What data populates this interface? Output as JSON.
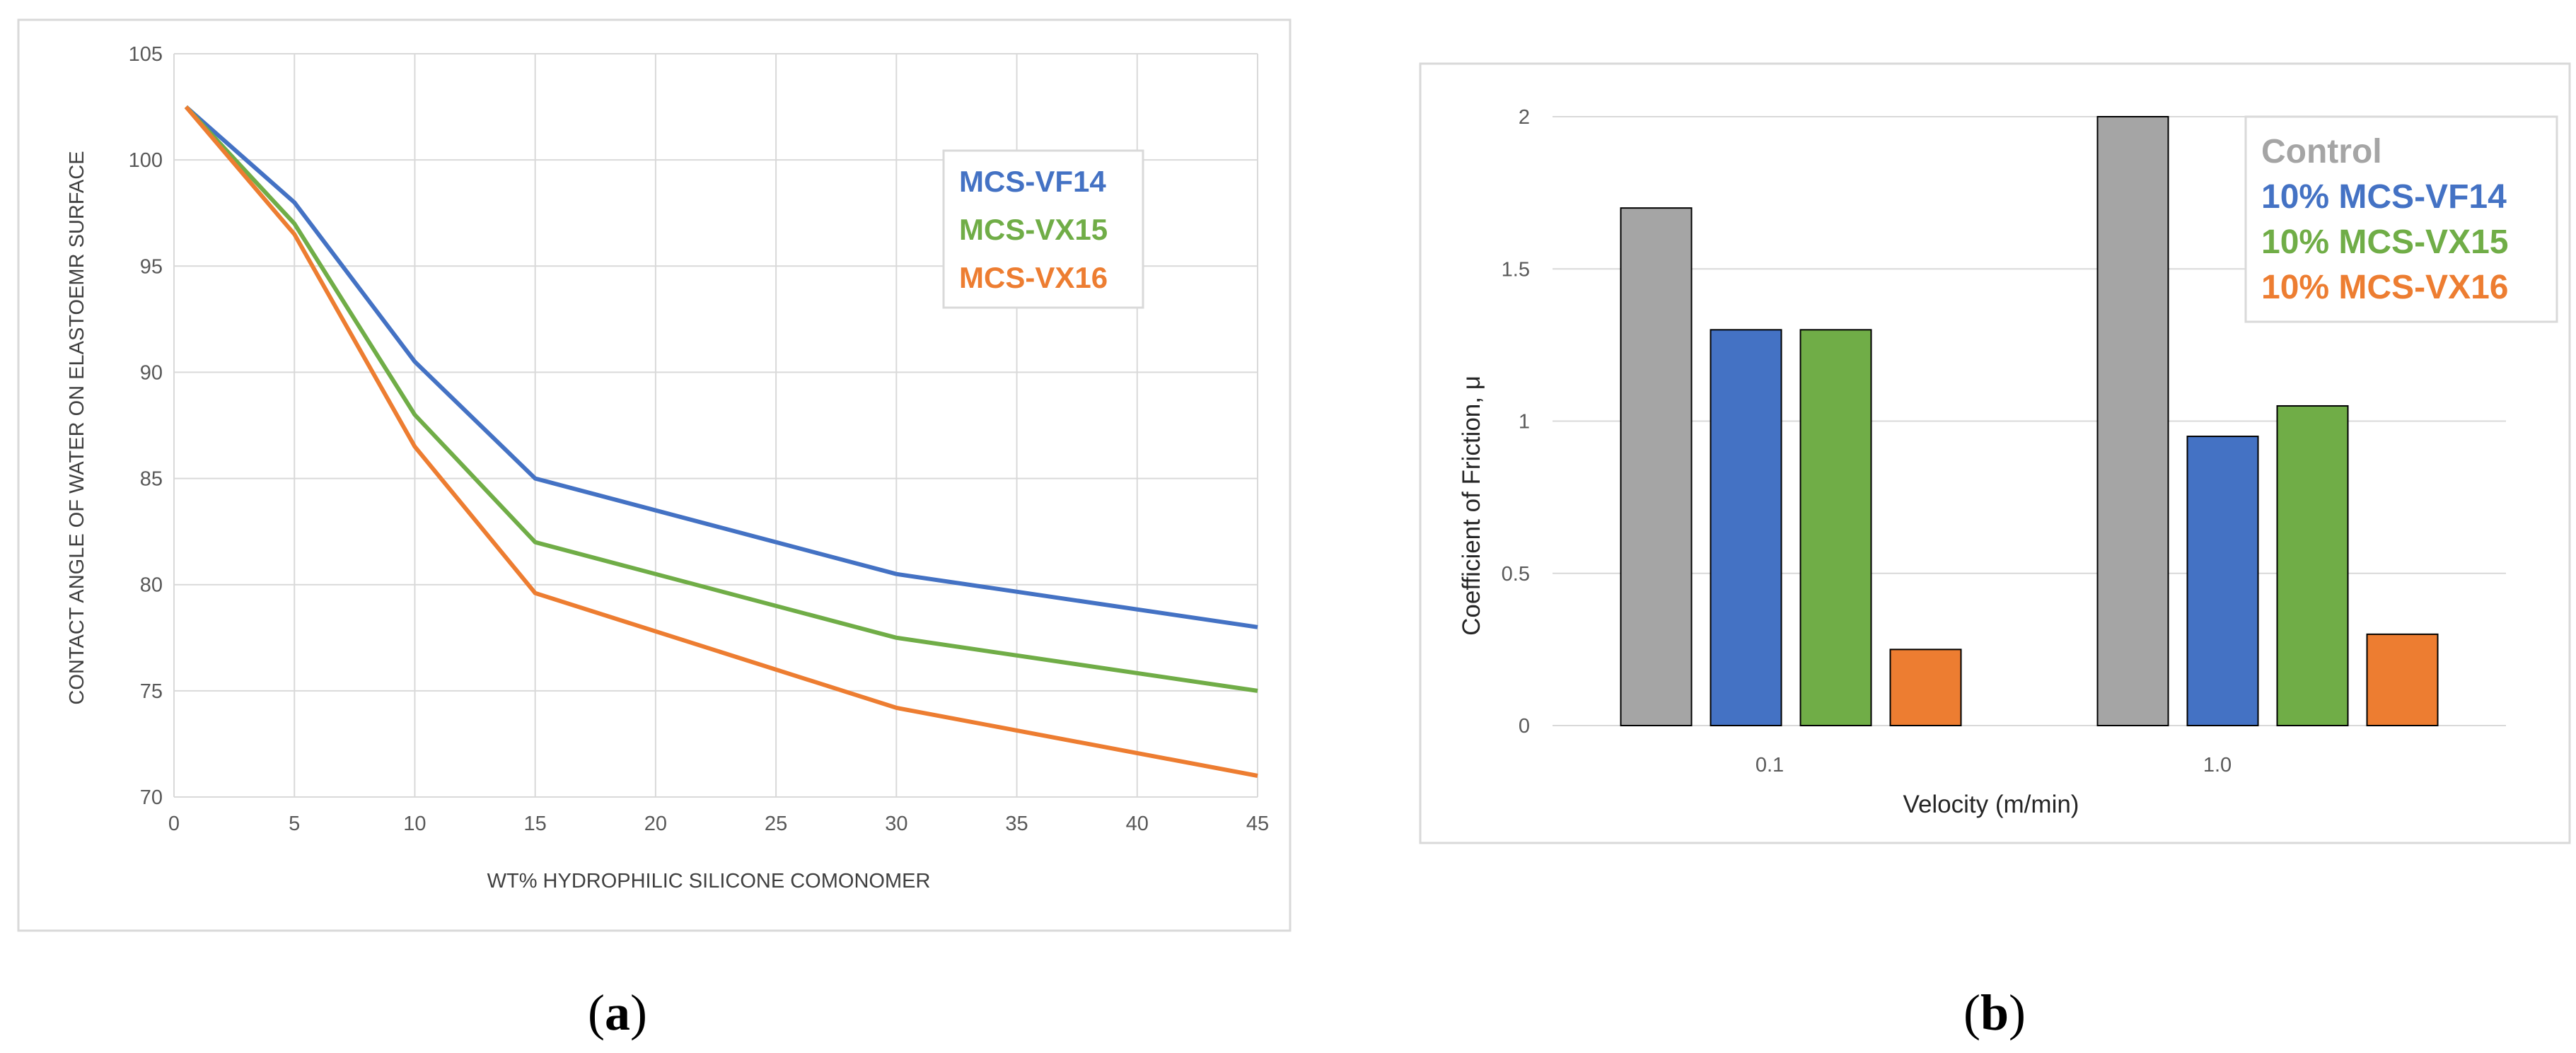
{
  "chart_data": [
    {
      "id": "a",
      "type": "line",
      "title": "",
      "xlabel": "WT% HYDROPHILIC SILICONE COMONOMER",
      "ylabel": "CONTACT ANGLE OF WATER ON ELASTOEMR SURFACE",
      "xlim": [
        0,
        45
      ],
      "ylim": [
        70,
        105
      ],
      "xticks": [
        0,
        5,
        10,
        15,
        20,
        25,
        30,
        35,
        40,
        45
      ],
      "yticks": [
        70,
        75,
        80,
        85,
        90,
        95,
        100,
        105
      ],
      "grid": true,
      "legend_position": "top-right",
      "series": [
        {
          "name": "MCS-VF14",
          "color": "#4472c4",
          "x": [
            0.5,
            5,
            10,
            15,
            30,
            45
          ],
          "y": [
            102.5,
            98,
            90.5,
            85,
            80.5,
            78
          ]
        },
        {
          "name": "MCS-VX15",
          "color": "#70ad47",
          "x": [
            0.5,
            5,
            10,
            15,
            30,
            45
          ],
          "y": [
            102.5,
            97,
            88,
            82,
            77.5,
            75
          ]
        },
        {
          "name": "MCS-VX16",
          "color": "#ed7d31",
          "x": [
            0.5,
            5,
            10,
            15,
            30,
            45
          ],
          "y": [
            102.5,
            96.5,
            86.5,
            79.6,
            74.2,
            71
          ]
        }
      ]
    },
    {
      "id": "b",
      "type": "bar",
      "title": "",
      "xlabel": "Velocity (m/min)",
      "ylabel": "Coefficient of Friction, μ",
      "categories": [
        "0.1",
        "1.0"
      ],
      "ylim": [
        0,
        2
      ],
      "yticks": [
        "0",
        "0.5",
        "1",
        "1.5",
        "2"
      ],
      "grid": true,
      "legend_position": "top-right",
      "series": [
        {
          "name": "Control",
          "color": "#a5a5a5",
          "values": [
            1.7,
            2.0
          ]
        },
        {
          "name": "10% MCS-VF14",
          "color": "#4472c4",
          "values": [
            1.3,
            0.95
          ]
        },
        {
          "name": "10% MCS-VX15",
          "color": "#70ad47",
          "values": [
            1.3,
            1.05
          ]
        },
        {
          "name": "10% MCS-VX16",
          "color": "#ed7d31",
          "values": [
            0.25,
            0.3
          ]
        }
      ]
    }
  ],
  "captions": [
    {
      "open": "(",
      "letter": "a",
      "close": ")"
    },
    {
      "open": "(",
      "letter": "b",
      "close": ")"
    }
  ]
}
